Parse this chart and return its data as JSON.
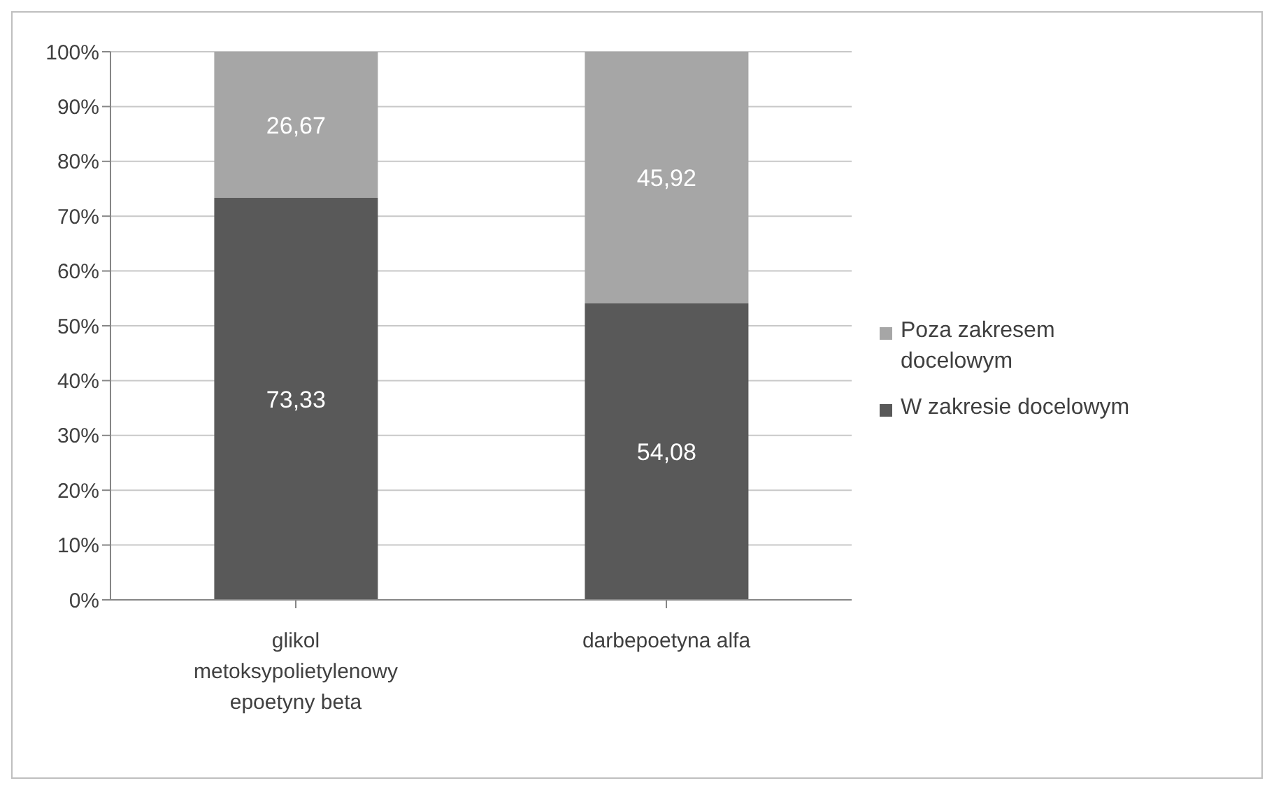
{
  "chart_data": {
    "type": "bar",
    "stacked": true,
    "categories": [
      "glikol metoksypolietylenowy epoetyny beta",
      "darbepoetyna alfa"
    ],
    "series": [
      {
        "name": "W zakresie docelowym",
        "color": "#595959",
        "values": [
          73.33,
          54.08
        ],
        "value_labels": [
          "73,33",
          "54,08"
        ]
      },
      {
        "name": "Poza zakresem docelowym",
        "color": "#a6a6a6",
        "values": [
          26.67,
          45.92
        ],
        "value_labels": [
          "26,67",
          "45,92"
        ]
      }
    ],
    "ylim": [
      0,
      100
    ],
    "yticks": [
      {
        "value": 0,
        "label": "0%"
      },
      {
        "value": 10,
        "label": "10%"
      },
      {
        "value": 20,
        "label": "20%"
      },
      {
        "value": 30,
        "label": "30%"
      },
      {
        "value": 40,
        "label": "40%"
      },
      {
        "value": 50,
        "label": "50%"
      },
      {
        "value": 60,
        "label": "60%"
      },
      {
        "value": 70,
        "label": "70%"
      },
      {
        "value": 80,
        "label": "80%"
      },
      {
        "value": 90,
        "label": "90%"
      },
      {
        "value": 100,
        "label": "100%"
      }
    ],
    "grid": "y",
    "legend": "right"
  }
}
